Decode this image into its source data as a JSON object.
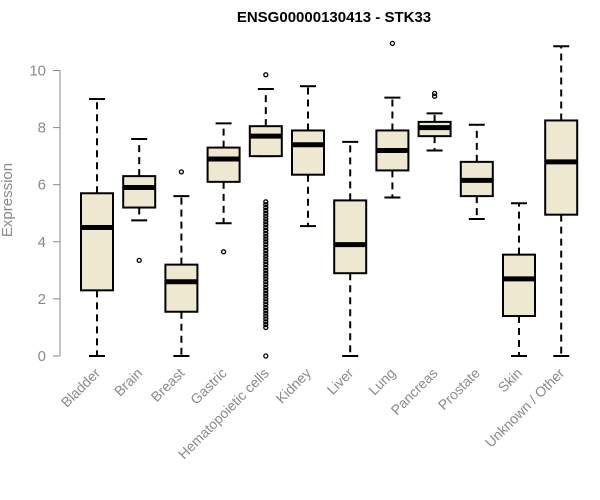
{
  "chart_data": {
    "type": "boxplot",
    "title": "ENSG00000130413 - STK33",
    "xlabel": "",
    "ylabel": "Expression",
    "ylim": [
      0,
      11
    ],
    "yticks": [
      0,
      2,
      4,
      6,
      8,
      10
    ],
    "box_color": "#EFE8D0",
    "categories": [
      "Bladder",
      "Brain",
      "Breast",
      "Gastric",
      "Hematopoietic cells",
      "Kidney",
      "Liver",
      "Lung",
      "Pancreas",
      "Prostate",
      "Skin",
      "Unknown / Other"
    ],
    "series": [
      {
        "name": "Bladder",
        "min": 0.0,
        "q1": 2.3,
        "median": 4.5,
        "q3": 5.7,
        "max": 9.0,
        "outliers": []
      },
      {
        "name": "Brain",
        "min": 4.75,
        "q1": 5.2,
        "median": 5.9,
        "q3": 6.3,
        "max": 7.6,
        "outliers": [
          3.35
        ]
      },
      {
        "name": "Breast",
        "min": 0.0,
        "q1": 1.55,
        "median": 2.6,
        "q3": 3.2,
        "max": 5.6,
        "outliers": [
          6.45
        ]
      },
      {
        "name": "Gastric",
        "min": 4.65,
        "q1": 6.1,
        "median": 6.9,
        "q3": 7.3,
        "max": 8.15,
        "outliers": [
          3.65
        ]
      },
      {
        "name": "Hematopoietic cells",
        "min": 7.0,
        "q1": 7.0,
        "median": 7.7,
        "q3": 8.05,
        "max": 9.35,
        "outliers": [
          9.85,
          5.4,
          5.3,
          5.2,
          5.1,
          5.0,
          4.9,
          4.8,
          4.7,
          4.6,
          4.5,
          4.4,
          4.3,
          4.2,
          4.1,
          4.0,
          3.9,
          3.8,
          3.7,
          3.6,
          3.5,
          3.4,
          3.3,
          3.2,
          3.1,
          3.0,
          2.9,
          2.8,
          2.7,
          2.6,
          2.5,
          2.4,
          2.3,
          2.2,
          2.1,
          2.0,
          1.9,
          1.8,
          1.7,
          1.6,
          1.5,
          1.4,
          1.3,
          1.2,
          1.1,
          1.0,
          0.0
        ]
      },
      {
        "name": "Kidney",
        "min": 4.55,
        "q1": 6.35,
        "median": 7.4,
        "q3": 7.9,
        "max": 9.45,
        "outliers": []
      },
      {
        "name": "Liver",
        "min": 0.0,
        "q1": 2.9,
        "median": 3.9,
        "q3": 5.45,
        "max": 7.5,
        "outliers": []
      },
      {
        "name": "Lung",
        "min": 5.55,
        "q1": 6.5,
        "median": 7.2,
        "q3": 7.9,
        "max": 9.05,
        "outliers": [
          10.95
        ]
      },
      {
        "name": "Pancreas",
        "min": 7.2,
        "q1": 7.7,
        "median": 8.0,
        "q3": 8.2,
        "max": 8.5,
        "outliers": [
          9.1,
          9.2
        ]
      },
      {
        "name": "Prostate",
        "min": 4.8,
        "q1": 5.6,
        "median": 6.15,
        "q3": 6.8,
        "max": 8.1,
        "outliers": []
      },
      {
        "name": "Skin",
        "min": 0.0,
        "q1": 1.4,
        "median": 2.7,
        "q3": 3.55,
        "max": 5.35,
        "outliers": []
      },
      {
        "name": "Unknown / Other",
        "min": 0.0,
        "q1": 4.95,
        "median": 6.8,
        "q3": 8.25,
        "max": 10.85,
        "outliers": []
      }
    ]
  }
}
